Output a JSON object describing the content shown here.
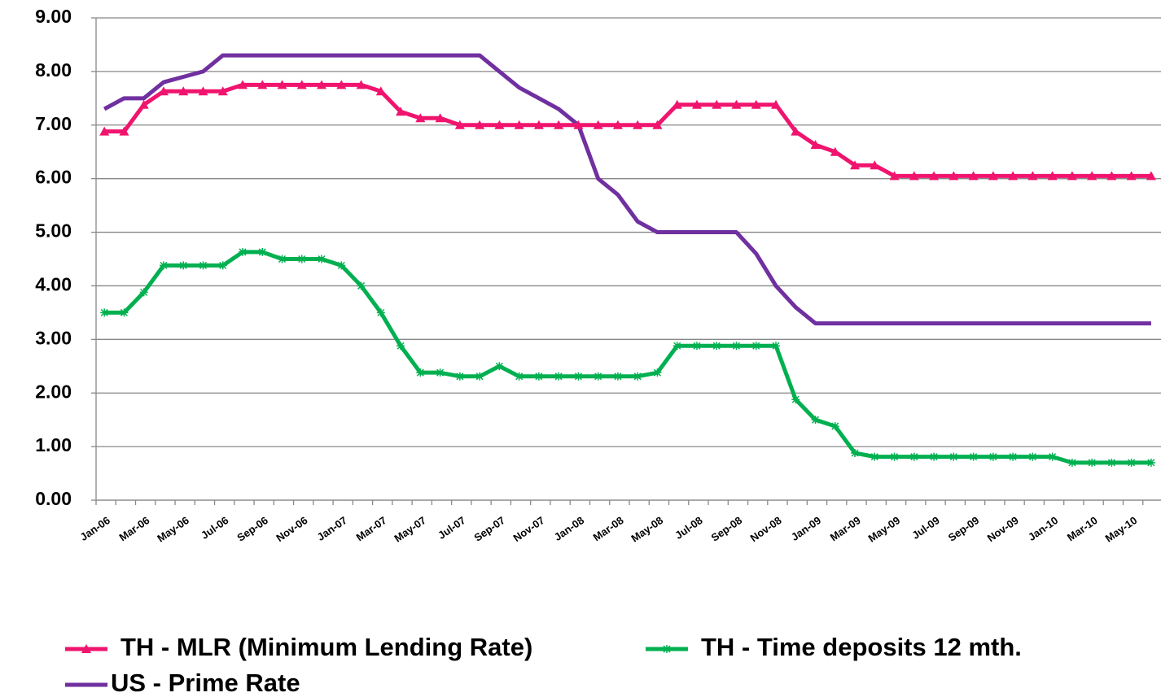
{
  "chart_data": {
    "type": "line",
    "categories": [
      "Jan-06",
      null,
      "Mar-06",
      null,
      "May-06",
      null,
      "Jul-06",
      null,
      "Sep-06",
      null,
      "Nov-06",
      null,
      "Jan-07",
      null,
      "Mar-07",
      null,
      "May-07",
      null,
      "Jul-07",
      null,
      "Sep-07",
      null,
      "Nov-07",
      null,
      "Jan-08",
      null,
      "Mar-08",
      null,
      "May-08",
      null,
      "Jul-08",
      null,
      "Sep-08",
      null,
      "Nov-08",
      null,
      "Jan-09",
      null,
      "Mar-09",
      null,
      "May-09",
      null,
      "Jul-09",
      null,
      "Sep-09",
      null,
      "Nov-09",
      null,
      "Jan-10",
      null,
      "Mar-10",
      null,
      "May-10",
      null
    ],
    "series": [
      {
        "name": "TH - MLR (Minimum Lending Rate)",
        "color": "#f0146e",
        "marker": "triangle",
        "values": [
          6.88,
          6.88,
          7.38,
          7.63,
          7.63,
          7.63,
          7.63,
          7.75,
          7.75,
          7.75,
          7.75,
          7.75,
          7.75,
          7.75,
          7.63,
          7.25,
          7.13,
          7.13,
          7.0,
          7.0,
          7.0,
          7.0,
          7.0,
          7.0,
          7.0,
          7.0,
          7.0,
          7.0,
          7.0,
          7.38,
          7.38,
          7.38,
          7.38,
          7.38,
          7.38,
          6.88,
          6.63,
          6.5,
          6.25,
          6.25,
          6.05,
          6.05,
          6.05,
          6.05,
          6.05,
          6.05,
          6.05,
          6.05,
          6.05,
          6.05,
          6.05,
          6.05,
          6.05,
          6.05
        ]
      },
      {
        "name": "TH - Time deposits 12 mth.",
        "color": "#00b050",
        "marker": "star",
        "values": [
          3.5,
          3.5,
          3.88,
          4.38,
          4.38,
          4.38,
          4.38,
          4.63,
          4.63,
          4.5,
          4.5,
          4.5,
          4.38,
          4.0,
          3.5,
          2.88,
          2.38,
          2.38,
          2.31,
          2.31,
          2.5,
          2.31,
          2.31,
          2.31,
          2.31,
          2.31,
          2.31,
          2.31,
          2.38,
          2.88,
          2.88,
          2.88,
          2.88,
          2.88,
          2.88,
          1.88,
          1.5,
          1.38,
          0.88,
          0.81,
          0.81,
          0.81,
          0.81,
          0.81,
          0.81,
          0.81,
          0.81,
          0.81,
          0.81,
          0.7,
          0.7,
          0.7,
          0.7,
          0.7
        ]
      },
      {
        "name": "US - Prime Rate",
        "color": "#7030a0",
        "marker": "none",
        "values": [
          7.3,
          7.5,
          7.5,
          7.8,
          7.9,
          8.0,
          8.3,
          8.3,
          8.3,
          8.3,
          8.3,
          8.3,
          8.3,
          8.3,
          8.3,
          8.3,
          8.3,
          8.3,
          8.3,
          8.3,
          8.0,
          7.7,
          7.5,
          7.3,
          7.0,
          6.0,
          5.7,
          5.2,
          5.0,
          5.0,
          5.0,
          5.0,
          5.0,
          4.6,
          4.0,
          3.6,
          3.3,
          3.3,
          3.3,
          3.3,
          3.3,
          3.3,
          3.3,
          3.3,
          3.3,
          3.3,
          3.3,
          3.3,
          3.3,
          3.3,
          3.3,
          3.3,
          3.3,
          3.3
        ]
      }
    ],
    "ylim": [
      0,
      9
    ],
    "yticks": [
      {
        "value": 0,
        "label": "0.00"
      },
      {
        "value": 1,
        "label": "1.00"
      },
      {
        "value": 2,
        "label": "2.00"
      },
      {
        "value": 3,
        "label": "3.00"
      },
      {
        "value": 4,
        "label": "4.00"
      },
      {
        "value": 5,
        "label": "5.00"
      },
      {
        "value": 6,
        "label": "6.00"
      },
      {
        "value": 7,
        "label": "7.00"
      },
      {
        "value": 8,
        "label": "8.00"
      },
      {
        "value": 9,
        "label": "9.00"
      }
    ],
    "grid": true,
    "legend": "bottom"
  }
}
